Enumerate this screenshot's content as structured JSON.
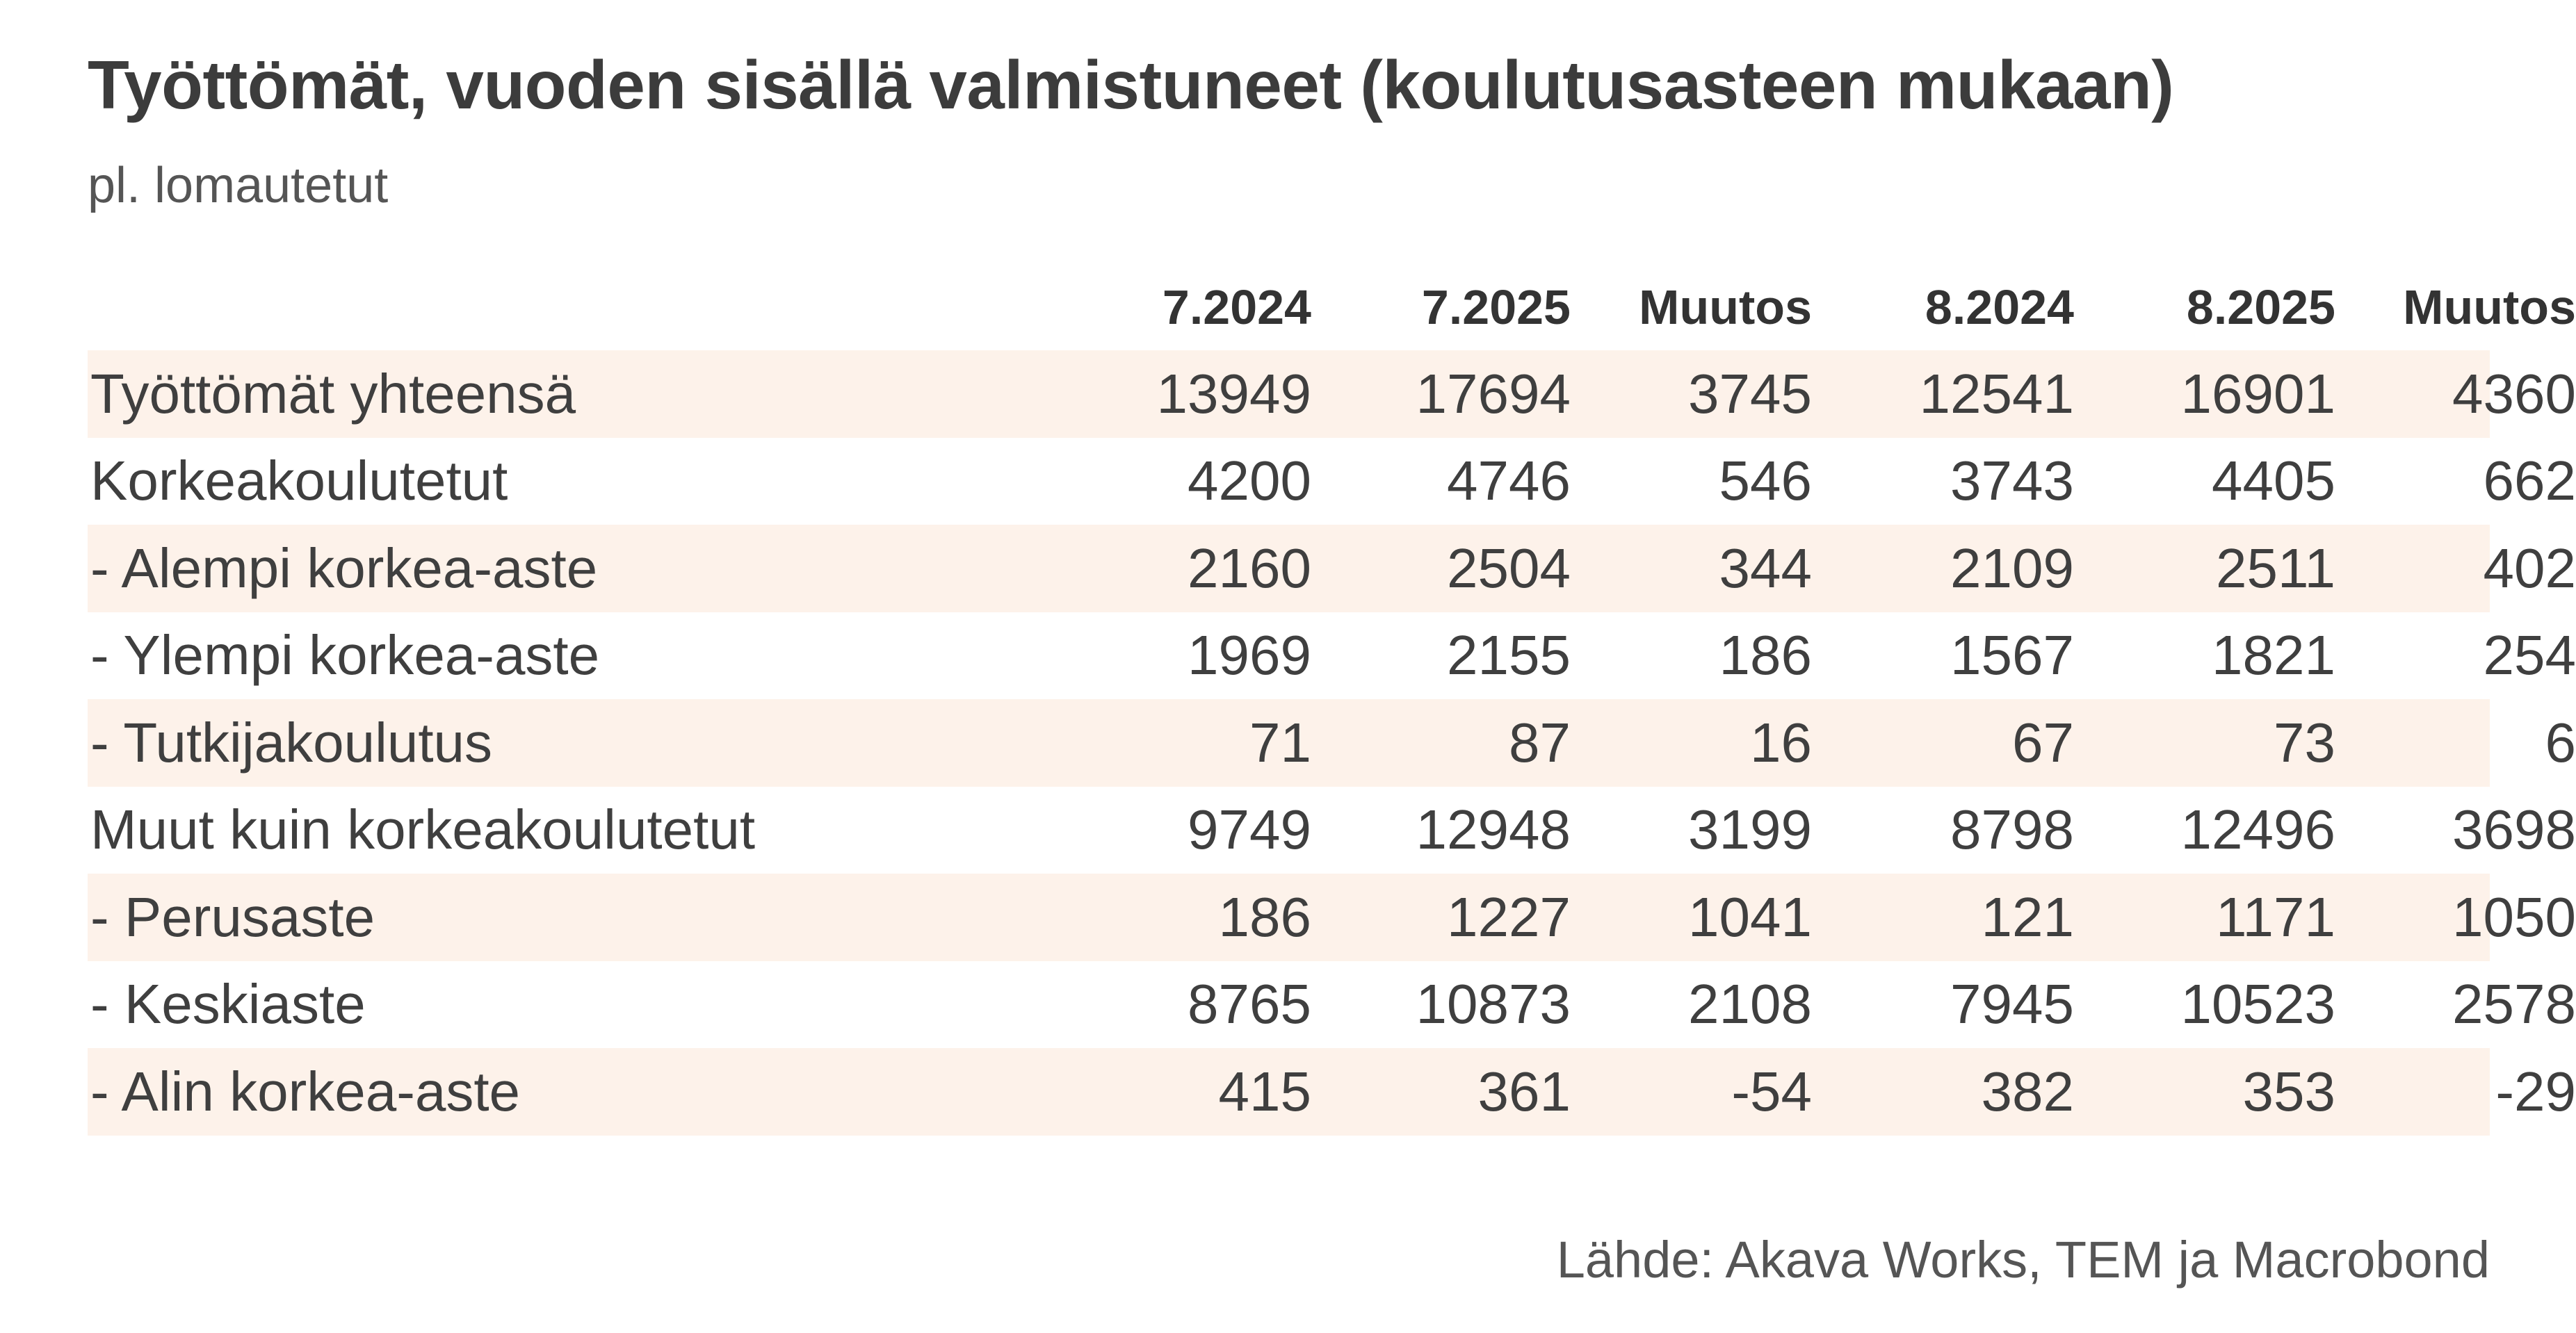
{
  "title": "Työttömät, vuoden sisällä valmistuneet (koulutusasteen mukaan)",
  "subtitle": "pl. lomautetut",
  "source": "Lähde: Akava Works, TEM ja Macrobond",
  "colors": {
    "row_shade": "#fdf2ea",
    "text": "#3f3f3f",
    "background": "#ffffff"
  },
  "chart_data": {
    "type": "table",
    "title": "Työttömät, vuoden sisällä valmistuneet (koulutusasteen mukaan)",
    "subtitle": "pl. lomautetut",
    "columns": [
      "7.2024",
      "7.2025",
      "Muutos",
      "8.2024",
      "8.2025",
      "Muutos"
    ],
    "rows": [
      {
        "label": "Työttömät yhteensä",
        "values": [
          "13949",
          "17694",
          "3745",
          "12541",
          "16901",
          "4360"
        ]
      },
      {
        "label": "Korkeakoulutetut",
        "values": [
          "4200",
          "4746",
          "546",
          "3743",
          "4405",
          "662"
        ]
      },
      {
        "label": "- Alempi korkea-aste",
        "values": [
          "2160",
          "2504",
          "344",
          "2109",
          "2511",
          "402"
        ]
      },
      {
        "label": "- Ylempi korkea-aste",
        "values": [
          "1969",
          "2155",
          "186",
          "1567",
          "1821",
          "254"
        ]
      },
      {
        "label": "- Tutkijakoulutus",
        "values": [
          "71",
          "87",
          "16",
          "67",
          "73",
          "6"
        ]
      },
      {
        "label": "Muut kuin korkeakoulutetut",
        "values": [
          "9749",
          "12948",
          "3199",
          "8798",
          "12496",
          "3698"
        ]
      },
      {
        "label": "- Perusaste",
        "values": [
          "186",
          "1227",
          "1041",
          "121",
          "1171",
          "1050"
        ]
      },
      {
        "label": "- Keskiaste",
        "values": [
          "8765",
          "10873",
          "2108",
          "7945",
          "10523",
          "2578"
        ]
      },
      {
        "label": "- Alin korkea-aste",
        "values": [
          "415",
          "361",
          "-54",
          "382",
          "353",
          "-29"
        ]
      }
    ],
    "source": "Lähde: Akava Works, TEM ja Macrobond"
  }
}
